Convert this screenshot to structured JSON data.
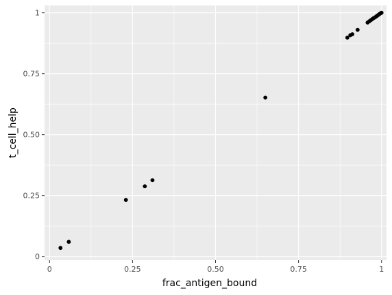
{
  "chart_data": {
    "type": "scatter",
    "xlabel": "frac_antigen_bound",
    "ylabel": "t_cell_help",
    "xlim": [
      -0.015,
      1.015
    ],
    "ylim": [
      -0.015,
      1.03
    ],
    "x_ticks": [
      0,
      0.25,
      0.5,
      0.75,
      1
    ],
    "x_tick_labels": [
      "0",
      "0.25",
      "0.50",
      "0.75",
      "1"
    ],
    "y_ticks": [
      0,
      0.25,
      0.5,
      0.75,
      1
    ],
    "y_tick_labels": [
      "0",
      "0.25",
      "0.50",
      "0.75",
      "1"
    ],
    "grid": true,
    "colors": {
      "panel_background": "#ebebeb",
      "grid": "#ffffff",
      "point": "#000000",
      "axis_text": "#4d4d4d"
    },
    "points": [
      {
        "x": 0.033,
        "y": 0.035
      },
      {
        "x": 0.058,
        "y": 0.06
      },
      {
        "x": 0.23,
        "y": 0.232
      },
      {
        "x": 0.287,
        "y": 0.288
      },
      {
        "x": 0.31,
        "y": 0.313
      },
      {
        "x": 0.65,
        "y": 0.652
      },
      {
        "x": 0.897,
        "y": 0.898
      },
      {
        "x": 0.906,
        "y": 0.908
      },
      {
        "x": 0.912,
        "y": 0.912
      },
      {
        "x": 0.928,
        "y": 0.93
      },
      {
        "x": 0.958,
        "y": 0.96
      },
      {
        "x": 0.963,
        "y": 0.965
      },
      {
        "x": 0.968,
        "y": 0.97
      },
      {
        "x": 0.972,
        "y": 0.974
      },
      {
        "x": 0.976,
        "y": 0.978
      },
      {
        "x": 0.98,
        "y": 0.981
      },
      {
        "x": 0.984,
        "y": 0.985
      },
      {
        "x": 0.987,
        "y": 0.988
      },
      {
        "x": 0.99,
        "y": 0.991
      },
      {
        "x": 0.993,
        "y": 0.994
      },
      {
        "x": 0.996,
        "y": 0.997
      },
      {
        "x": 0.998,
        "y": 0.999
      },
      {
        "x": 1.0,
        "y": 1.0
      }
    ]
  }
}
